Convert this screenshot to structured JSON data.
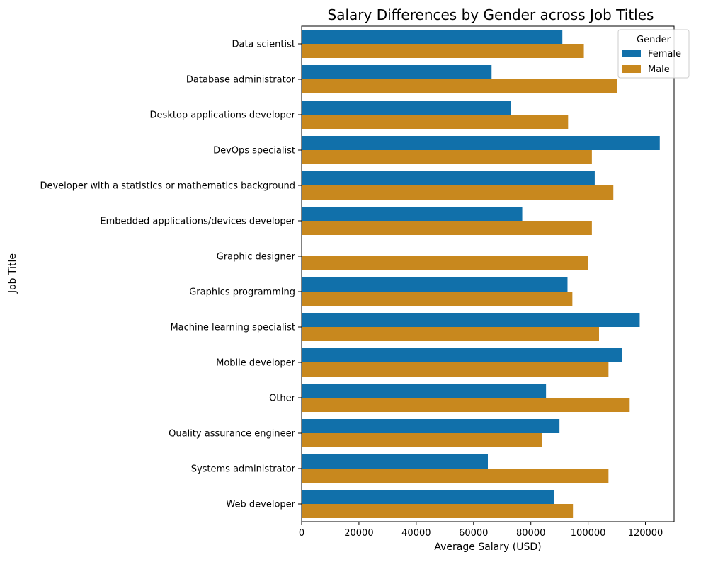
{
  "chart_data": {
    "type": "bar",
    "orientation": "horizontal",
    "title": "Salary Differences by Gender across Job Titles",
    "xlabel": "Average Salary (USD)",
    "ylabel": "Job Title",
    "xlim": [
      0,
      130000
    ],
    "xticks": [
      0,
      20000,
      40000,
      60000,
      80000,
      100000,
      120000
    ],
    "grid": false,
    "legend": {
      "title": "Gender",
      "position": "top-right"
    },
    "categories": [
      "Data scientist",
      "Database administrator",
      "Desktop applications developer",
      "DevOps specialist",
      "Developer with a statistics or mathematics background",
      "Embedded applications/devices developer",
      "Graphic designer",
      "Graphics programming",
      "Machine learning specialist",
      "Mobile developer",
      "Other",
      "Quality assurance engineer",
      "Systems administrator",
      "Web developer"
    ],
    "series": [
      {
        "name": "Female",
        "color": "#1170aa",
        "values": [
          91000,
          66300,
          73000,
          125000,
          102300,
          77000,
          null,
          92800,
          118000,
          111800,
          85300,
          90000,
          65000,
          88100
        ]
      },
      {
        "name": "Male",
        "color": "#c8881e",
        "values": [
          98500,
          110000,
          93000,
          101300,
          108800,
          101300,
          100000,
          94500,
          103800,
          107100,
          114500,
          84000,
          107100,
          94700
        ]
      }
    ]
  }
}
